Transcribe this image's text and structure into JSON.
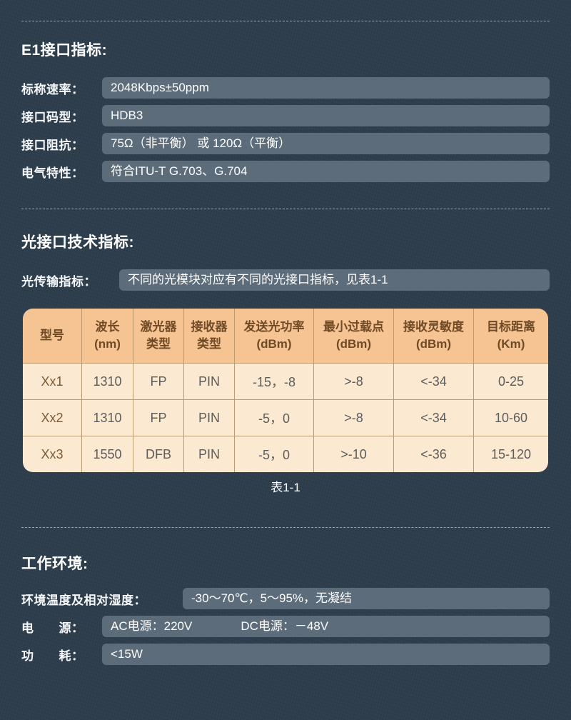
{
  "colors": {
    "background": "#2e3e4d",
    "pill": "#5d6c7a",
    "divider": "#97a5b0",
    "table_header_bg": "#f6c493",
    "table_body_bg": "#fbead1",
    "table_line": "#bb9b72",
    "table_header_text": "#6f4a26",
    "table_body_text": "#5c5c5c",
    "table_model_text": "#7d5a33",
    "text": "#ffffff"
  },
  "sections": {
    "e1": {
      "title": "E1接口指标:",
      "rows": [
        {
          "label": "标称速率：",
          "value": "2048Kbps±50ppm"
        },
        {
          "label": "接口码型：",
          "value": "HDB3"
        },
        {
          "label": "接口阻抗：",
          "value": "75Ω（非平衡） 或 120Ω（平衡）"
        },
        {
          "label": "电气特性：",
          "value": "符合ITU-T G.703、G.704"
        }
      ]
    },
    "optical": {
      "title": "光接口技术指标:",
      "row": {
        "label": "光传输指标：",
        "value": "不同的光模块对应有不同的光接口指标，见表1-1"
      },
      "caption": "表1-1"
    },
    "environment": {
      "title": "工作环境:",
      "rows": [
        {
          "label": "环境温度及相对湿度：",
          "value": "-30～70℃，5～95%，无凝结"
        },
        {
          "label": "电　　源：",
          "value": "AC电源：220V　　　　DC电源：－48V"
        },
        {
          "label": "功　　耗：",
          "value": "<15W"
        }
      ]
    }
  },
  "table": {
    "headers": [
      "型号",
      "波长\n(nm)",
      "激光器\n类型",
      "接收器\n类型",
      "发送光功率\n(dBm)",
      "最小过载点\n(dBm)",
      "接收灵敏度\n(dBm)",
      "目标距离\n(Km)"
    ],
    "rows": [
      [
        "Xx1",
        "1310",
        "FP",
        "PIN",
        "-15，-8",
        ">-8",
        "<-34",
        "0-25"
      ],
      [
        "Xx2",
        "1310",
        "FP",
        "PIN",
        "-5，0",
        ">-8",
        "<-34",
        "10-60"
      ],
      [
        "Xx3",
        "1550",
        "DFB",
        "PIN",
        "-5，0",
        ">-10",
        "<-36",
        "15-120"
      ]
    ]
  }
}
